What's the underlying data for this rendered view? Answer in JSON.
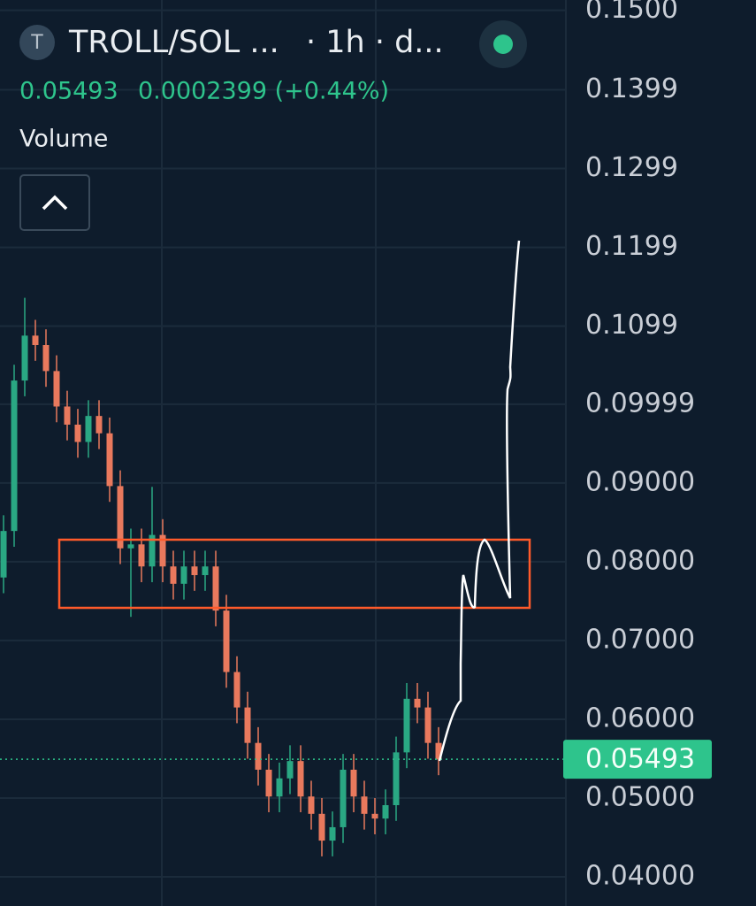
{
  "header": {
    "icon": "T",
    "pair": "TROLL/SOL ...",
    "interval": "· 1h · d...",
    "change": "0.0002399 (+0.44%)",
    "volume": "Volume"
  },
  "chart_data": {
    "type": "candlestick",
    "open": [
      0.078,
      0.0839,
      0.103,
      0.1087,
      0.1075,
      0.1042,
      0.0997,
      0.0974,
      0.0952,
      0.0985,
      0.0963,
      0.0896,
      0.0817,
      0.0822,
      0.0794,
      0.0834,
      0.0794,
      0.0772,
      0.0794,
      0.0783,
      0.0794,
      0.0738,
      0.066,
      0.0615,
      0.057,
      0.0536,
      0.0502,
      0.0525,
      0.0547,
      0.0502,
      0.048,
      0.0446,
      0.0463,
      0.0536,
      0.0502,
      0.048,
      0.0474,
      0.0491,
      0.0558,
      0.0626,
      0.0615,
      0.057
    ],
    "high": [
      0.0859,
      0.105,
      0.1135,
      0.1107,
      0.1095,
      0.1062,
      0.1017,
      0.0994,
      0.1005,
      0.1005,
      0.0983,
      0.0916,
      0.0842,
      0.0842,
      0.0895,
      0.0854,
      0.0814,
      0.0814,
      0.0814,
      0.0814,
      0.0814,
      0.0758,
      0.068,
      0.0635,
      0.059,
      0.0556,
      0.0545,
      0.0567,
      0.0567,
      0.0522,
      0.05,
      0.0483,
      0.0556,
      0.0556,
      0.0522,
      0.05,
      0.0511,
      0.0578,
      0.0646,
      0.0646,
      0.0635,
      0.059
    ],
    "low": [
      0.076,
      0.0819,
      0.101,
      0.1055,
      0.1022,
      0.0977,
      0.0954,
      0.0932,
      0.0932,
      0.0943,
      0.0876,
      0.0797,
      0.073,
      0.0774,
      0.0774,
      0.0774,
      0.0752,
      0.0752,
      0.0763,
      0.0763,
      0.0718,
      0.064,
      0.0595,
      0.055,
      0.0516,
      0.0482,
      0.0482,
      0.0505,
      0.0482,
      0.046,
      0.0426,
      0.0426,
      0.0443,
      0.0482,
      0.046,
      0.0454,
      0.0454,
      0.0471,
      0.0538,
      0.0595,
      0.055,
      0.0529
    ],
    "close": [
      0.0839,
      0.103,
      0.1087,
      0.1075,
      0.1042,
      0.0997,
      0.0974,
      0.0952,
      0.0985,
      0.0963,
      0.0896,
      0.0817,
      0.0822,
      0.0794,
      0.0834,
      0.0794,
      0.0772,
      0.0794,
      0.0783,
      0.0794,
      0.0738,
      0.066,
      0.0615,
      0.057,
      0.0536,
      0.0502,
      0.0525,
      0.0547,
      0.0502,
      0.048,
      0.0446,
      0.0463,
      0.0536,
      0.0502,
      0.048,
      0.0474,
      0.0491,
      0.0558,
      0.0626,
      0.0615,
      0.057,
      0.0549
    ],
    "up_color": "#2aa883",
    "down_color": "#e9795d",
    "last_price": 0.05493,
    "last_price_color": "#2ec48c",
    "ylim": [
      0.0363,
      0.1513
    ],
    "yticks": [
      {
        "value": 0.15,
        "label": "0.1500"
      },
      0.1399,
      0.1299,
      0.1199,
      0.1099,
      0.09999,
      {
        "value": 0.09,
        "label": "0.09000"
      },
      {
        "value": 0.08,
        "label": "0.08000"
      },
      {
        "value": 0.07,
        "label": "0.07000"
      },
      {
        "value": 0.06,
        "label": "0.06000"
      },
      {
        "value": 0.05,
        "label": "0.05000"
      },
      {
        "value": 0.04,
        "label": "0.04000"
      }
    ],
    "grid": true
  }
}
